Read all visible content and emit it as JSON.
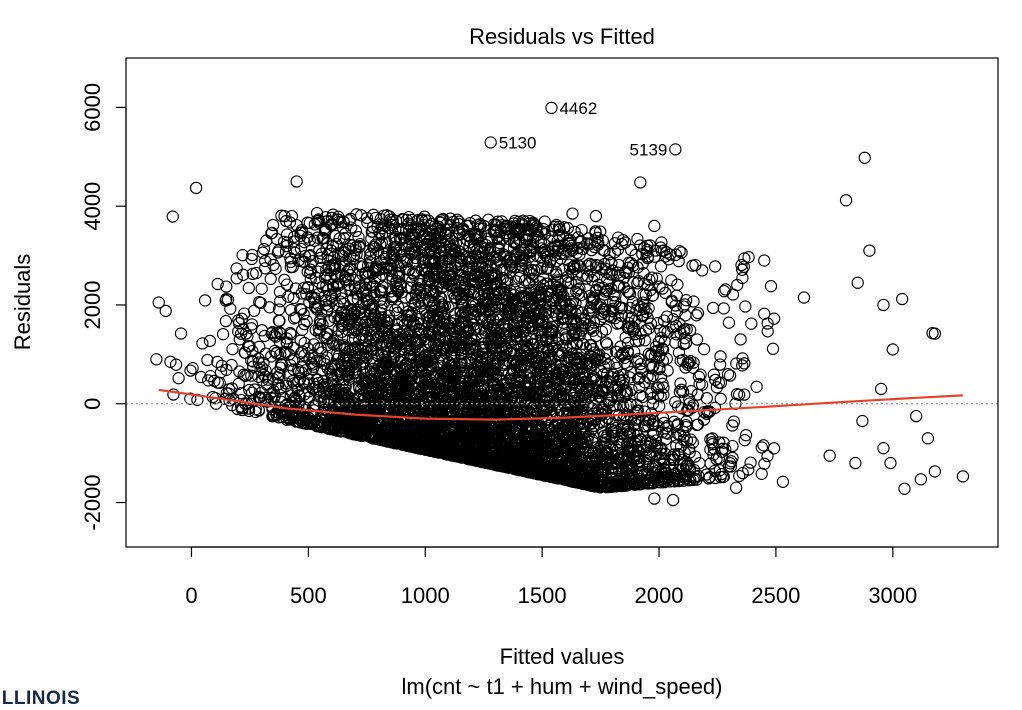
{
  "chart_data": {
    "type": "scatter",
    "title": "Residuals vs Fitted",
    "xlabel": "Fitted values",
    "subtitle": "lm(cnt ~ t1 + hum + wind_speed)",
    "ylabel": "Residuals",
    "xlim": [
      -280,
      3450
    ],
    "ylim": [
      -2900,
      7000
    ],
    "x_ticks": [
      0,
      500,
      1000,
      1500,
      2000,
      2500,
      3000
    ],
    "x_tick_labels": [
      "0",
      "500",
      "1000",
      "1500",
      "2000",
      "2500",
      "3000"
    ],
    "y_ticks": [
      -2000,
      0,
      2000,
      4000,
      6000
    ],
    "y_tick_labels": [
      "-2000",
      "0",
      "2000",
      "4000",
      "6000"
    ],
    "zero_line": 0,
    "labeled_points": [
      {
        "label": "4462",
        "x": 1540,
        "y": 5990,
        "side": "right"
      },
      {
        "label": "5130",
        "x": 1280,
        "y": 5290,
        "side": "right"
      },
      {
        "label": "5139",
        "x": 2070,
        "y": 5150,
        "side": "left"
      }
    ],
    "outliers": [
      [
        20,
        4370
      ],
      [
        -80,
        3790
      ],
      [
        450,
        4500
      ],
      [
        2880,
        4980
      ],
      [
        2800,
        4120
      ],
      [
        1920,
        4480
      ],
      [
        1980,
        3600
      ],
      [
        2900,
        3100
      ],
      [
        -140,
        2050
      ],
      [
        -110,
        1880
      ],
      [
        3170,
        1430
      ],
      [
        3180,
        1420
      ],
      [
        3300,
        -1470
      ],
      [
        3180,
        -1370
      ],
      [
        3050,
        -1720
      ],
      [
        2990,
        -1200
      ],
      [
        3120,
        -1530
      ],
      [
        2330,
        -1700
      ],
      [
        1980,
        -1920
      ],
      [
        2060,
        -1950
      ],
      [
        2530,
        -1580
      ],
      [
        -150,
        900
      ],
      [
        -90,
        850
      ],
      [
        2960,
        2000
      ],
      [
        3040,
        2120
      ],
      [
        2850,
        2450
      ],
      [
        2620,
        2150
      ],
      [
        3000,
        1100
      ],
      [
        2950,
        300
      ],
      [
        2870,
        -350
      ],
      [
        3100,
        -250
      ],
      [
        3150,
        -700
      ],
      [
        2960,
        -900
      ],
      [
        2730,
        -1050
      ],
      [
        2840,
        -1200
      ],
      [
        2450,
        2900
      ],
      [
        2240,
        2780
      ],
      [
        1880,
        2850
      ],
      [
        1630,
        3850
      ],
      [
        1730,
        3800
      ]
    ],
    "bulk": {
      "x_range": [
        -150,
        2500
      ],
      "residual_min_line": [
        [
          -150,
          250
        ],
        [
          1750,
          -1700
        ]
      ],
      "residual_max_line": [
        [
          -150,
          1200
        ],
        [
          400,
          3900
        ],
        [
          1500,
          3700
        ],
        [
          2500,
          2900
        ]
      ],
      "n_points": 6000
    },
    "smoother": {
      "color": "#e8432a",
      "x": [
        -140,
        100,
        400,
        700,
        1000,
        1300,
        1600,
        1900,
        2200,
        2500,
        2800,
        3100,
        3300
      ],
      "y": [
        280,
        120,
        -90,
        -220,
        -300,
        -320,
        -280,
        -210,
        -130,
        -50,
        40,
        120,
        170
      ]
    }
  },
  "branding": {
    "logo_text": "ILLINOIS"
  }
}
